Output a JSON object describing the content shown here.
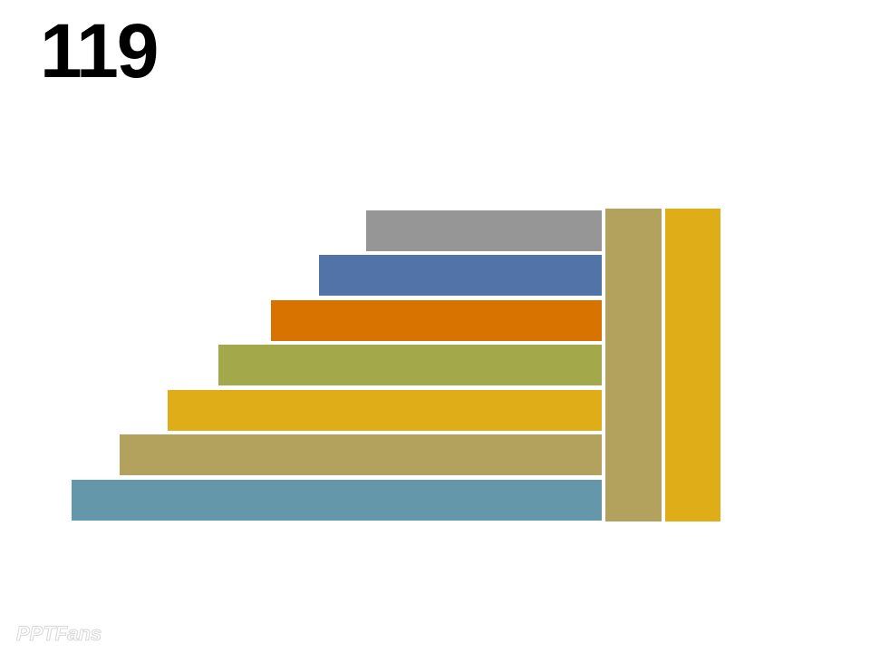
{
  "title": "119",
  "watermark": "PPTFans"
}
